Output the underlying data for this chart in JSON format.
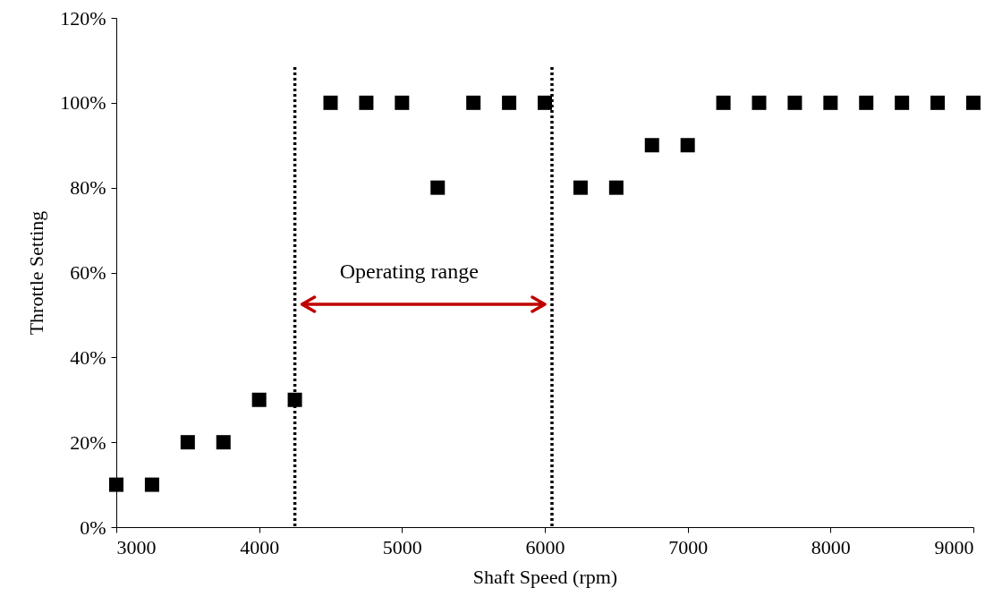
{
  "chart_data": {
    "type": "scatter",
    "xlabel": "Shaft Speed (rpm)",
    "ylabel": "Throttle Setting",
    "x": [
      3000,
      3250,
      3500,
      3750,
      4000,
      4250,
      4500,
      4750,
      5000,
      5250,
      5500,
      5750,
      6000,
      6250,
      6500,
      6750,
      7000,
      7250,
      7500,
      7750,
      8000,
      8250,
      8500,
      8750,
      9000
    ],
    "series": [
      {
        "color": "#000000",
        "values": [
          10,
          10,
          20,
          20,
          30,
          30,
          100,
          100,
          100,
          80,
          100,
          100,
          100,
          80,
          80,
          90,
          90,
          100,
          100,
          100,
          100,
          100,
          100,
          100,
          100
        ]
      }
    ],
    "marker": "square",
    "grid": false,
    "xlim": [
      3000,
      9000
    ],
    "xticks": [
      3000,
      4000,
      5000,
      6000,
      7000,
      8000,
      9000
    ],
    "ylim": [
      0,
      120
    ],
    "yticks": [
      {
        "value": 0,
        "label": "0%"
      },
      {
        "value": 20,
        "label": "20%"
      },
      {
        "value": 40,
        "label": "40%"
      },
      {
        "value": 60,
        "label": "60%"
      },
      {
        "value": 80,
        "label": "80%"
      },
      {
        "value": 100,
        "label": "100%"
      },
      {
        "value": 120,
        "label": "120%"
      }
    ],
    "ref_lines": [
      {
        "axis": "x",
        "value": 4250,
        "color": "#000000",
        "line_style": "dotted"
      },
      {
        "axis": "x",
        "value": 6050,
        "color": "#000000",
        "line_style": "dotted"
      }
    ],
    "annotations": [
      "Operating range"
    ]
  }
}
